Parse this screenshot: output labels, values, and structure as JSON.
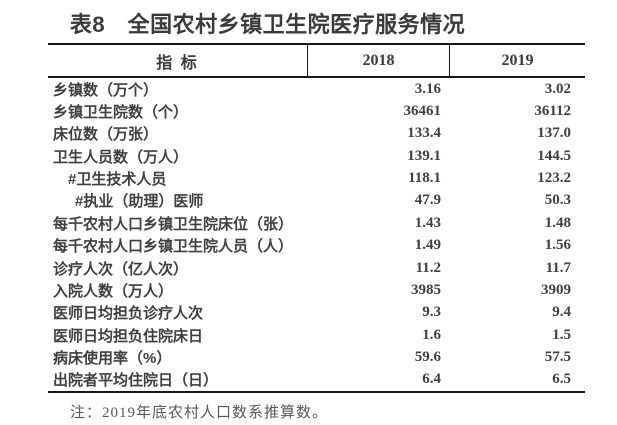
{
  "title": "表8　全国农村乡镇卫生院医疗服务情况",
  "table": {
    "columns": [
      "指 标",
      "2018",
      "2019"
    ],
    "rows": [
      {
        "label": "乡镇数（万个）",
        "indent": 0,
        "v2018": "3.16",
        "v2019": "3.02"
      },
      {
        "label": "乡镇卫生院数（个）",
        "indent": 0,
        "v2018": "36461",
        "v2019": "36112"
      },
      {
        "label": "床位数（万张）",
        "indent": 0,
        "v2018": "133.4",
        "v2019": "137.0"
      },
      {
        "label": "卫生人员数（万人）",
        "indent": 0,
        "v2018": "139.1",
        "v2019": "144.5"
      },
      {
        "label": "#卫生技术人员",
        "indent": 1,
        "v2018": "118.1",
        "v2019": "123.2"
      },
      {
        "label": "#执业（助理）医师",
        "indent": 2,
        "v2018": "47.9",
        "v2019": "50.3"
      },
      {
        "label": "每千农村人口乡镇卫生院床位（张）",
        "indent": 0,
        "v2018": "1.43",
        "v2019": "1.48"
      },
      {
        "label": "每千农村人口乡镇卫生院人员（人）",
        "indent": 0,
        "v2018": "1.49",
        "v2019": "1.56"
      },
      {
        "label": "诊疗人次（亿人次）",
        "indent": 0,
        "v2018": "11.2",
        "v2019": "11.7"
      },
      {
        "label": "入院人数（万人）",
        "indent": 0,
        "v2018": "3985",
        "v2019": "3909"
      },
      {
        "label": "医师日均担负诊疗人次",
        "indent": 0,
        "v2018": "9.3",
        "v2019": "9.4"
      },
      {
        "label": "医师日均担负住院床日",
        "indent": 0,
        "v2018": "1.6",
        "v2019": "1.5"
      },
      {
        "label": "病床使用率（%）",
        "indent": 0,
        "v2018": "59.6",
        "v2019": "57.5"
      },
      {
        "label": "出院者平均住院日（日）",
        "indent": 0,
        "v2018": "6.4",
        "v2019": "6.5"
      }
    ]
  },
  "note": "注：2019年底农村人口数系推算数。",
  "colors": {
    "background": "#ffffff",
    "text": "#3f3f3f",
    "title": "#3a3a3a",
    "border": "#161616",
    "note": "#585858"
  }
}
